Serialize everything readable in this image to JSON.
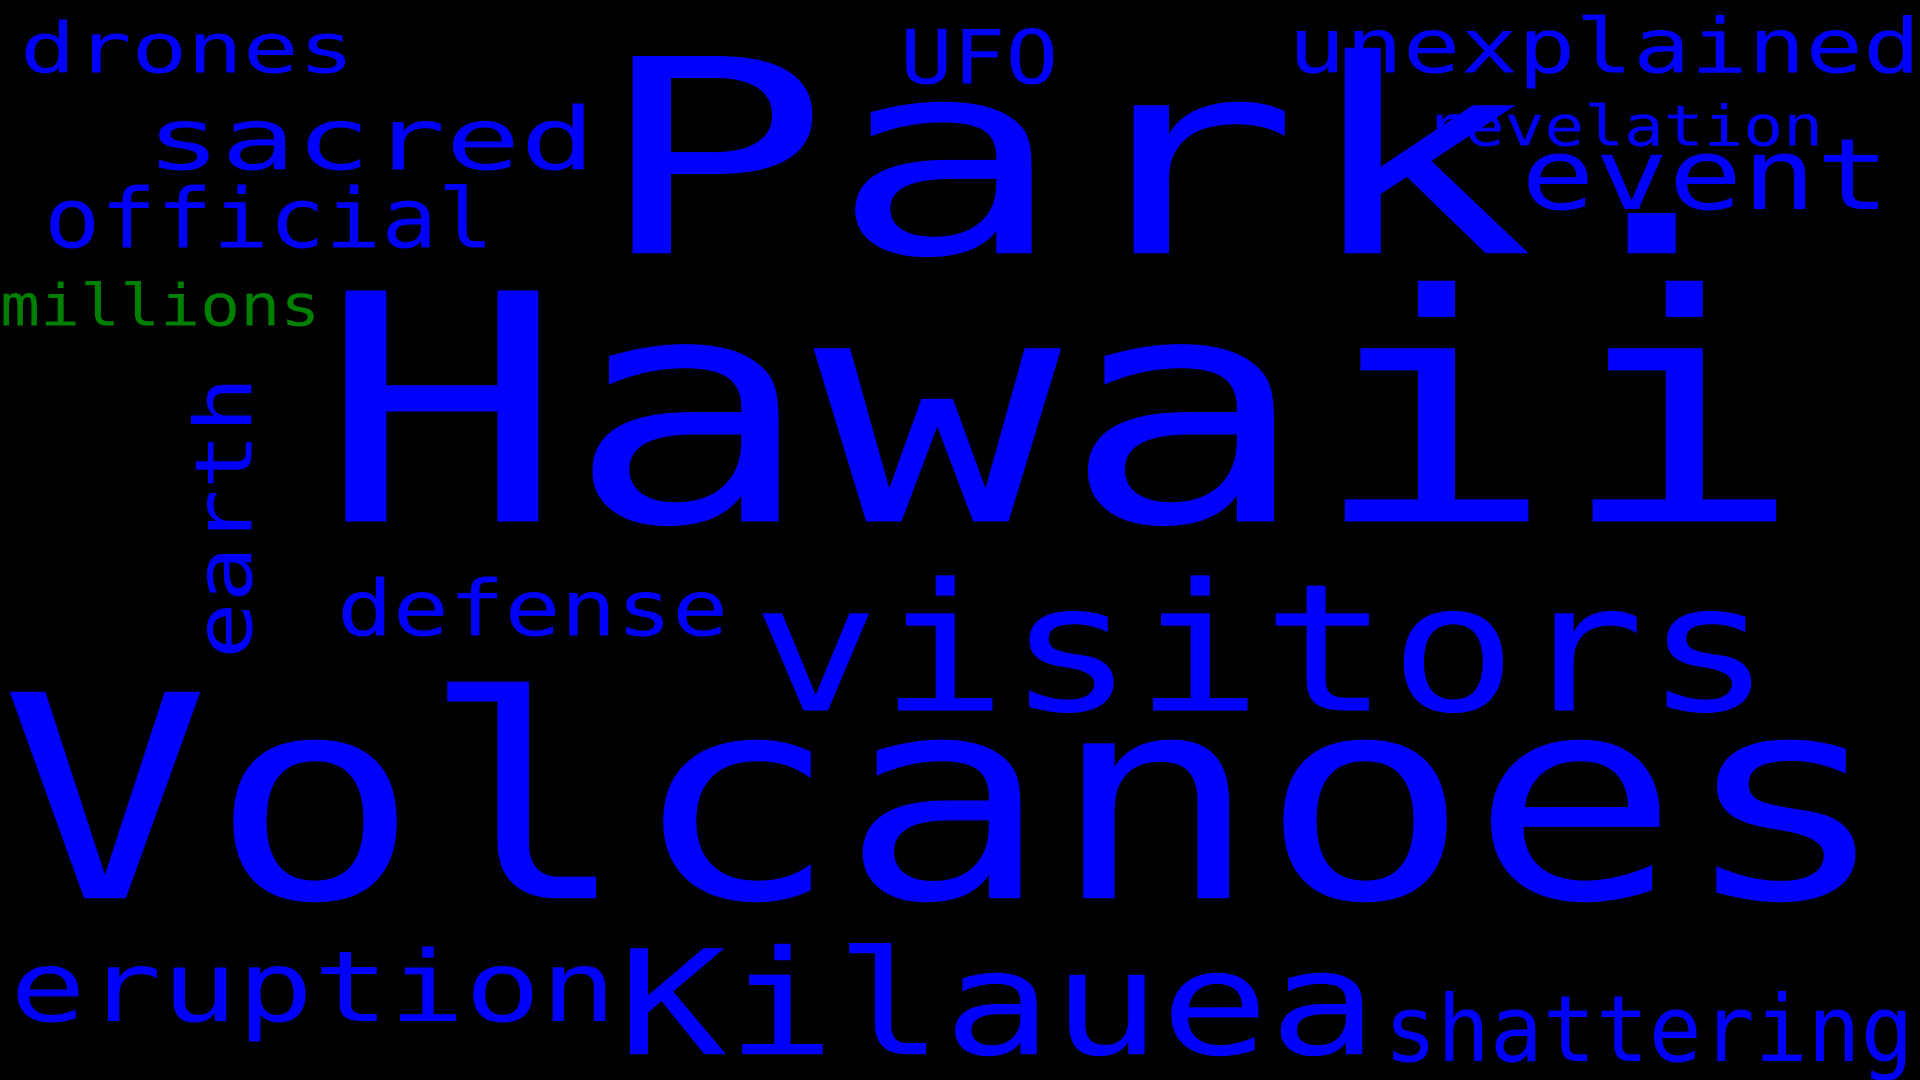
{
  "cloud": {
    "background": "#000000",
    "words": [
      {
        "text": "Park.",
        "color": "#0000ff"
      },
      {
        "text": "Hawaii",
        "color": "#0000ff"
      },
      {
        "text": "Volcanoes",
        "color": "#0000ff"
      },
      {
        "text": "visitors",
        "color": "#0000ff"
      },
      {
        "text": "Kilauea",
        "color": "#0000ff"
      },
      {
        "text": "sacred",
        "color": "#0000ff"
      },
      {
        "text": "event",
        "color": "#0000ff"
      },
      {
        "text": "unexplained",
        "color": "#0000ff"
      },
      {
        "text": "drones",
        "color": "#0000ff"
      },
      {
        "text": "UFO",
        "color": "#0000ff"
      },
      {
        "text": "official",
        "color": "#0000ff"
      },
      {
        "text": "revelation",
        "color": "#0000ff"
      },
      {
        "text": "millions",
        "color": "#008000"
      },
      {
        "text": "earth",
        "color": "#0000ff"
      },
      {
        "text": "defense",
        "color": "#0000ff"
      },
      {
        "text": "eruption",
        "color": "#0000ff"
      },
      {
        "text": "shattering",
        "color": "#0000ff"
      }
    ]
  }
}
